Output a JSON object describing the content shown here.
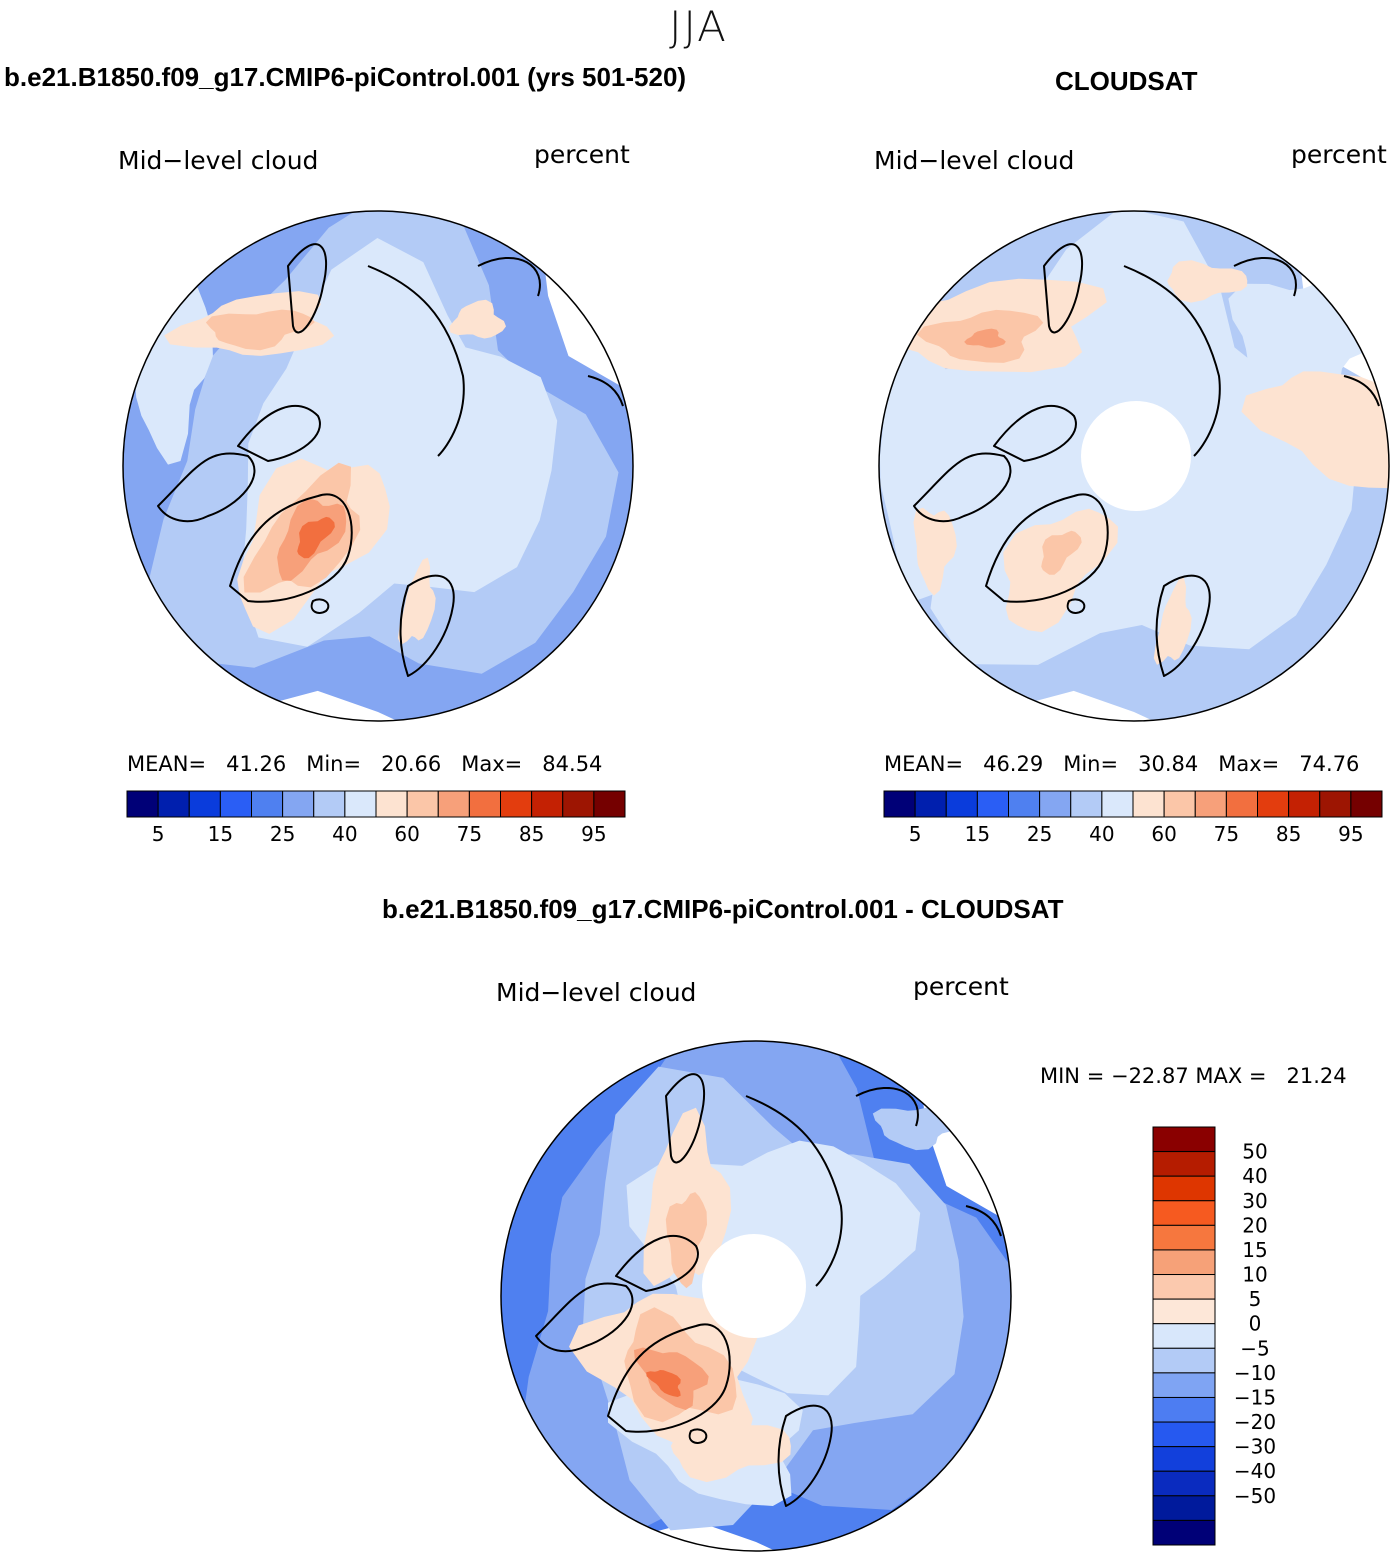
{
  "season": "JJA",
  "panels": [
    {
      "title": "b.e21.B1850.f09_g17.CMIP6-piControl.001 (yrs 501-520)",
      "variable": "Mid−level cloud",
      "units": "percent",
      "stats": "MEAN=   41.26   Min=   20.66   Max=   84.54"
    },
    {
      "title": "CLOUDSAT",
      "variable": "Mid−level cloud",
      "units": "percent",
      "stats": "MEAN=   46.29   Min=   30.84   Max=   74.76"
    }
  ],
  "diff_panel": {
    "title": "b.e21.B1850.f09_g17.CMIP6-piControl.001 - CLOUDSAT",
    "variable": "Mid−level cloud",
    "units": "percent",
    "stats": "MIN = −22.87 MAX =   21.24"
  },
  "colorbar_abs": {
    "colors": [
      "#000077",
      "#001fae",
      "#0a3cdc",
      "#2a5ef5",
      "#4f80f0",
      "#84a6f2",
      "#b3cbf6",
      "#dae8fb",
      "#fde3d1",
      "#fbc6a8",
      "#f7a07a",
      "#f26f3f",
      "#e33d0e",
      "#c42103",
      "#9d1502",
      "#750000"
    ],
    "labels": [
      "5",
      "15",
      "25",
      "40",
      "60",
      "75",
      "85",
      "95"
    ]
  },
  "colorbar_diff": {
    "colors_top_to_bottom": [
      "#8a0000",
      "#b51c00",
      "#de3600",
      "#f65a20",
      "#f6773e",
      "#f6a178",
      "#fbc9ae",
      "#fde7d8",
      "#d8e7fb",
      "#b3cbf6",
      "#7fa4f3",
      "#4d7df2",
      "#2659f0",
      "#1240dc",
      "#0a2bbf",
      "#001a9c",
      "#000077"
    ],
    "labels_top_to_bottom": [
      "50",
      "40",
      "30",
      "20",
      "15",
      "10",
      "5",
      "0",
      "−5",
      "−10",
      "−15",
      "−20",
      "−30",
      "−40",
      "−50"
    ]
  }
}
